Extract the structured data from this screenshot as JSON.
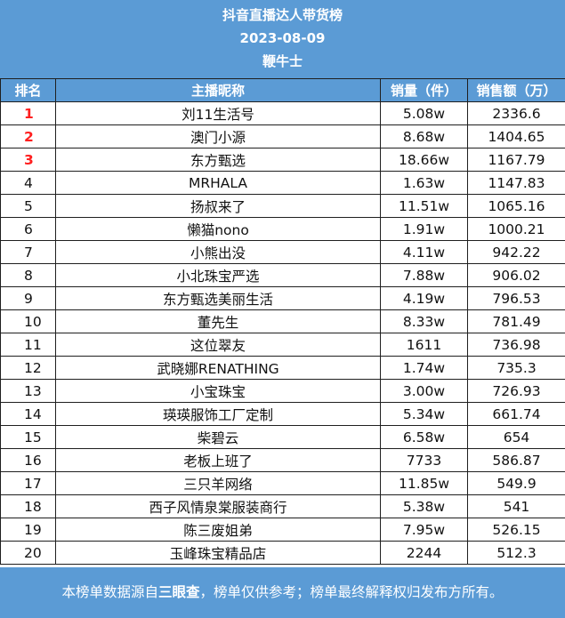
{
  "header": {
    "title": "抖音直播达人带货榜",
    "date": "2023-08-09",
    "author": "鞭牛士"
  },
  "columns": [
    "排名",
    "主播昵称",
    "销量（件）",
    "销售额（万）"
  ],
  "rows": [
    {
      "rank": "1",
      "name": "刘11生活号",
      "sales": "5.08w",
      "revenue": "2336.6"
    },
    {
      "rank": "2",
      "name": "澳门小源",
      "sales": "8.68w",
      "revenue": "1404.65"
    },
    {
      "rank": "3",
      "name": "东方甄选",
      "sales": "18.66w",
      "revenue": "1167.79"
    },
    {
      "rank": "4",
      "name": "MRHALA",
      "sales": "1.63w",
      "revenue": "1147.83"
    },
    {
      "rank": "5",
      "name": "扬叔来了",
      "sales": "11.51w",
      "revenue": "1065.16"
    },
    {
      "rank": "6",
      "name": "懒猫nono",
      "sales": "1.91w",
      "revenue": "1000.21"
    },
    {
      "rank": "7",
      "name": "小熊出没",
      "sales": "4.11w",
      "revenue": "942.22"
    },
    {
      "rank": "8",
      "name": "小北珠宝严选",
      "sales": "7.88w",
      "revenue": "906.02"
    },
    {
      "rank": "9",
      "name": "东方甄选美丽生活",
      "sales": "4.19w",
      "revenue": "796.53"
    },
    {
      "rank": "10",
      "name": "董先生",
      "sales": "8.33w",
      "revenue": "781.49"
    },
    {
      "rank": "11",
      "name": "这位翠友",
      "sales": "1611",
      "revenue": "736.98"
    },
    {
      "rank": "12",
      "name": "武晓娜RENATHING",
      "sales": "1.74w",
      "revenue": "735.3"
    },
    {
      "rank": "13",
      "name": "小宝珠宝",
      "sales": "3.00w",
      "revenue": "726.93"
    },
    {
      "rank": "14",
      "name": "瑛瑛服饰工厂定制",
      "sales": "5.34w",
      "revenue": "661.74"
    },
    {
      "rank": "15",
      "name": "柴碧云",
      "sales": "6.58w",
      "revenue": "654"
    },
    {
      "rank": "16",
      "name": "老板上班了",
      "sales": "7733",
      "revenue": "586.87"
    },
    {
      "rank": "17",
      "name": "三只羊网络",
      "sales": "11.85w",
      "revenue": "549.9"
    },
    {
      "rank": "18",
      "name": "西子风情泉棠服装商行",
      "sales": "5.38w",
      "revenue": "541"
    },
    {
      "rank": "19",
      "name": "陈三废姐弟",
      "sales": "7.95w",
      "revenue": "526.15"
    },
    {
      "rank": "20",
      "name": "玉峰珠宝精品店",
      "sales": "2244",
      "revenue": "512.3"
    }
  ],
  "footer": {
    "prefix": "本榜单数据源自",
    "source": "三眼查",
    "suffix": "，榜单仅供参考；榜单最终解释权归发布方所有。"
  },
  "colors": {
    "header_bg": "#5b9bd5",
    "top3_rank": "#ff1f1f",
    "border": "#1f1f1f"
  }
}
